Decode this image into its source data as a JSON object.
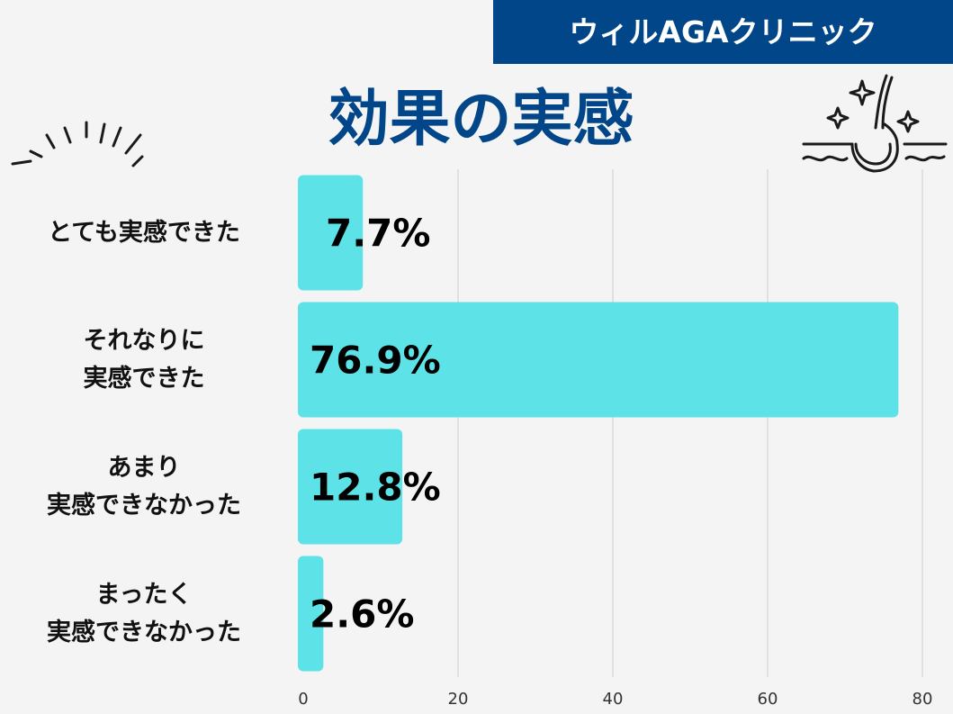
{
  "header": {
    "brand": "ウィルAGAクリニック",
    "title": "効果の実感"
  },
  "colors": {
    "brand_bg": "#004689",
    "title": "#004689",
    "bar": "#5de2e7",
    "background": "#f4f4f4"
  },
  "icons": {
    "left": "sparkle-burst-icon",
    "right": "hair-follicle-icon"
  },
  "chart_data": {
    "type": "bar",
    "orientation": "horizontal",
    "categories": [
      "とても実感できた",
      "それなりに\n実感できた",
      "あまり\n実感できなかった",
      "まったく\n実感できなかった"
    ],
    "values": [
      7.7,
      76.9,
      12.8,
      2.6
    ],
    "value_labels": [
      "7.7%",
      "76.9%",
      "12.8%",
      "2.6%"
    ],
    "xlim": [
      0,
      80
    ],
    "xticks": [
      0,
      20,
      40,
      60,
      80
    ],
    "grid": true,
    "legend": "none"
  }
}
